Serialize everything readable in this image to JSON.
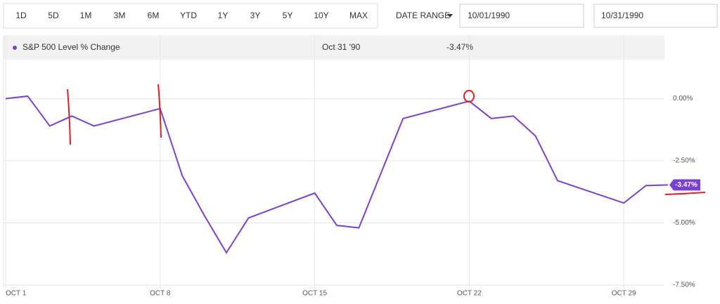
{
  "toolbar": {
    "ranges": [
      "1D",
      "5D",
      "1M",
      "3M",
      "6M",
      "YTD",
      "1Y",
      "3Y",
      "5Y",
      "10Y",
      "MAX"
    ],
    "date_range_label": "DATE RANGE",
    "start_date": "10/01/1990",
    "end_date": "10/31/1990"
  },
  "tooltip": {
    "date": "Oct 31 '90",
    "value": "-3.47%"
  },
  "chart_data": {
    "type": "line",
    "x": [
      1,
      2,
      3,
      4,
      5,
      8,
      9,
      10,
      11,
      12,
      15,
      16,
      17,
      18,
      19,
      22,
      23,
      24,
      25,
      26,
      29,
      30,
      31
    ],
    "series": [
      {
        "name": "S&P 500 Level % Change",
        "color": "#7b3fd4",
        "values": [
          0.0,
          0.1,
          -1.1,
          -0.7,
          -1.1,
          -0.4,
          -3.1,
          -4.7,
          -6.2,
          -4.8,
          -3.8,
          -5.1,
          -5.2,
          -3.0,
          -0.8,
          -0.1,
          -0.8,
          -0.7,
          -1.5,
          -3.3,
          -4.2,
          -3.5,
          -3.47
        ]
      }
    ],
    "xlim": [
      1,
      31
    ],
    "xticks": [
      {
        "value": 1,
        "label": "OCT 1"
      },
      {
        "value": 8,
        "label": "OCT 8"
      },
      {
        "value": 15,
        "label": "OCT 15"
      },
      {
        "value": 22,
        "label": "OCT 22"
      },
      {
        "value": 29,
        "label": "OCT 29"
      }
    ],
    "ylim": [
      -7.5,
      2.5
    ],
    "yticks": [
      {
        "value": 0,
        "label": "0.00%"
      },
      {
        "value": -2.5,
        "label": "-2.50%"
      },
      {
        "value": -5,
        "label": "-5.00%"
      },
      {
        "value": -7.5,
        "label": "-7.50%"
      }
    ],
    "grid": true
  }
}
